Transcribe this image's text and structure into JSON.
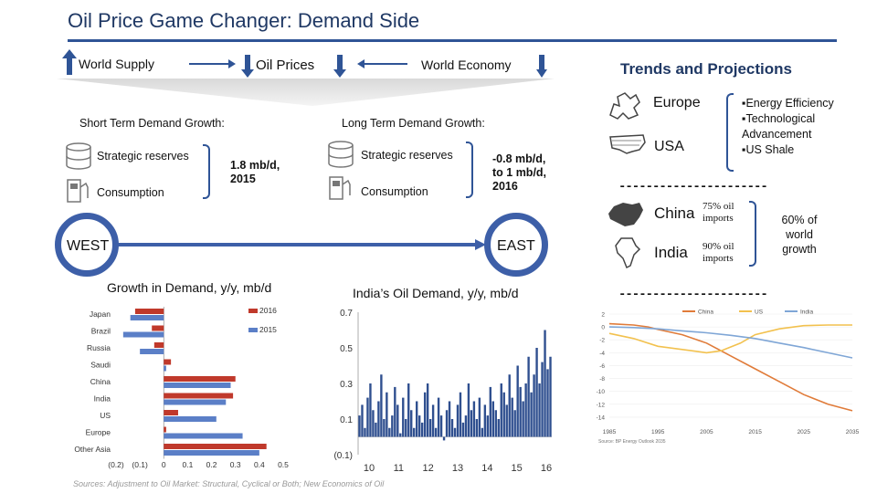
{
  "title": "Oil Price Game Changer: Demand Side",
  "top": {
    "world_supply": "World Supply",
    "oil_prices": "Oil Prices",
    "world_economy": "World Economy"
  },
  "short_term": {
    "heading": "Short Term Demand Growth:",
    "item1": "Strategic reserves",
    "item2": "Consumption",
    "value": "1.8 mb/d, 2015"
  },
  "long_term": {
    "heading": "Long Term Demand Growth:",
    "item1": "Strategic reserves",
    "item2": "Consumption",
    "value": "-0.8 mb/d, to 1 mb/d, 2016"
  },
  "axis": {
    "west": "WEST",
    "east": "EAST"
  },
  "trends": {
    "heading": "Trends and Projections",
    "europe": "Europe",
    "usa": "USA",
    "bullets": [
      "Energy Efficiency",
      "Technological Advancement",
      "US Shale"
    ],
    "china": "China",
    "india": "India",
    "china_imports": "75% oil imports",
    "india_imports": "90% oil imports",
    "world_growth": "60% of world growth",
    "dashes": "----------------------"
  },
  "source": "Sources: Adjustment to Oil Market: Structural, Cyclical or Both; New Economics of Oil",
  "colors": {
    "accent": "#2f5496",
    "bar2015": "#5b7fc7",
    "bar2016": "#c0392b",
    "india_bar": "#2f4f8f",
    "china_line": "#e07b39",
    "us_line": "#f2c14e",
    "india_line": "#7fa6d6"
  },
  "chart_data": [
    {
      "type": "bar",
      "title": "Growth in Demand, y/y, mb/d",
      "orientation": "horizontal",
      "categories": [
        "Japan",
        "Brazil",
        "Russia",
        "Saudi",
        "China",
        "India",
        "US",
        "Europe",
        "Other Asia"
      ],
      "series": [
        {
          "name": "2016",
          "values": [
            -0.12,
            -0.05,
            -0.04,
            0.03,
            0.3,
            0.29,
            0.06,
            0.01,
            0.43
          ]
        },
        {
          "name": "2015",
          "values": [
            -0.14,
            -0.17,
            -0.1,
            0.01,
            0.28,
            0.26,
            0.22,
            0.33,
            0.4
          ]
        }
      ],
      "xlim": [
        -0.2,
        0.5
      ],
      "xticks": [
        "(0.2)",
        "(0.1)",
        "0",
        "0.1",
        "0.2",
        "0.3",
        "0.4",
        "0.5"
      ]
    },
    {
      "type": "bar",
      "title": "India’s Oil Demand, y/y, mb/d",
      "x_ticks": [
        "10",
        "11",
        "12",
        "13",
        "14",
        "15",
        "16"
      ],
      "y_ticks": [
        "0.7",
        "0.5",
        "0.3",
        "0.1",
        "(0.1)"
      ],
      "ylim": [
        -0.1,
        0.7
      ],
      "values": [
        0.12,
        0.18,
        0.05,
        0.22,
        0.3,
        0.15,
        0.08,
        0.2,
        0.35,
        0.1,
        0.25,
        0.05,
        0.12,
        0.28,
        0.18,
        0.02,
        0.22,
        0.1,
        0.3,
        0.15,
        0.05,
        0.2,
        0.12,
        0.08,
        0.25,
        0.3,
        0.1,
        0.18,
        0.05,
        0.22,
        0.12,
        -0.02,
        0.15,
        0.2,
        0.1,
        0.05,
        0.18,
        0.25,
        0.08,
        0.12,
        0.3,
        0.15,
        0.2,
        0.1,
        0.22,
        0.05,
        0.18,
        0.12,
        0.28,
        0.2,
        0.15,
        0.1,
        0.3,
        0.25,
        0.18,
        0.35,
        0.22,
        0.15,
        0.4,
        0.28,
        0.2,
        0.3,
        0.45,
        0.25,
        0.35,
        0.5,
        0.3,
        0.42,
        0.6,
        0.38,
        0.45
      ]
    },
    {
      "type": "line",
      "legend": [
        "China",
        "US",
        "India"
      ],
      "x_ticks": [
        "1985",
        "1995",
        "2005",
        "2015",
        "2025",
        "2035"
      ],
      "y_ticks": [
        "2",
        "0",
        "-2",
        "-4",
        "-6",
        "-8",
        "-10",
        "-12",
        "-14"
      ],
      "xlim": [
        1985,
        2035
      ],
      "ylim": [
        -15,
        2
      ],
      "series": [
        {
          "name": "China",
          "x": [
            1985,
            1990,
            1993,
            1995,
            2000,
            2005,
            2010,
            2015,
            2020,
            2025,
            2030,
            2035
          ],
          "y": [
            0.5,
            0.3,
            0,
            -0.4,
            -1.2,
            -2.5,
            -4.5,
            -6.5,
            -8.5,
            -10.5,
            -12,
            -13
          ]
        },
        {
          "name": "US",
          "x": [
            1985,
            1990,
            1995,
            2000,
            2005,
            2008,
            2012,
            2015,
            2020,
            2025,
            2030,
            2035
          ],
          "y": [
            -1,
            -1.8,
            -3,
            -3.5,
            -4,
            -3.7,
            -2.5,
            -1.2,
            -0.3,
            0.2,
            0.3,
            0.3
          ]
        },
        {
          "name": "India",
          "x": [
            1985,
            1990,
            1995,
            2000,
            2005,
            2010,
            2015,
            2020,
            2025,
            2030,
            2035
          ],
          "y": [
            0,
            -0.1,
            -0.3,
            -0.6,
            -0.9,
            -1.3,
            -1.8,
            -2.5,
            -3.2,
            -4,
            -4.8
          ]
        }
      ],
      "footnote": "Source: BP Energy Outlook 2035"
    }
  ]
}
